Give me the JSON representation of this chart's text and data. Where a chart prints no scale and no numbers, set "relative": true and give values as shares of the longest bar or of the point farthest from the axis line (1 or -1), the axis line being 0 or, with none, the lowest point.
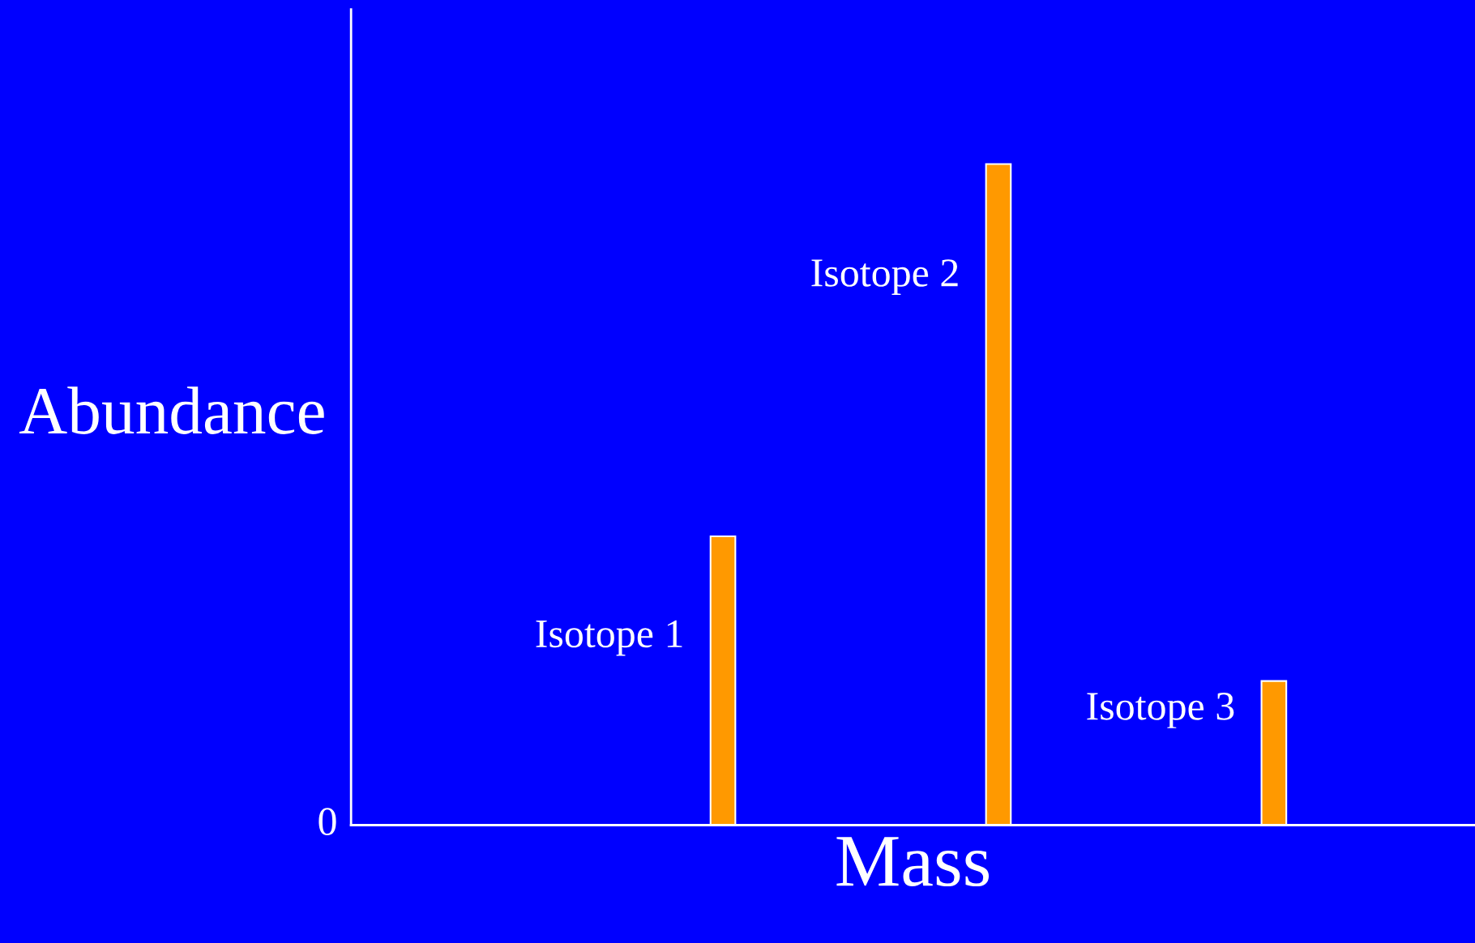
{
  "chart_data": {
    "type": "bar",
    "relative": true,
    "xlabel": "Mass",
    "ylabel": "Abundance",
    "categories": [
      null,
      null,
      null
    ],
    "values": [
      0.437,
      1,
      0.218
    ],
    "color": "#ff9900",
    "annotations": [
      "0",
      "Isotope 1",
      "Isotope 2",
      "Isotope 3"
    ],
    "legend": false
  }
}
